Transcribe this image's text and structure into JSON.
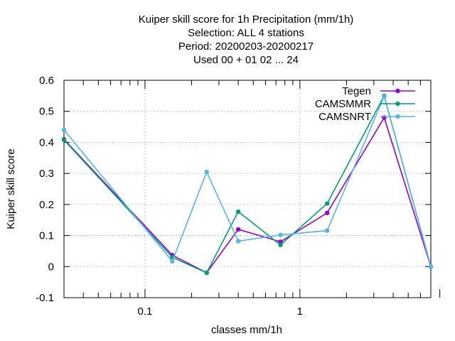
{
  "chart_data": {
    "type": "line",
    "title": [
      "Kuiper skill score  for 1h Precipitation (mm/1h)",
      "Selection: ALL      4 stations",
      "Period: 20200203-20200217",
      "Used  00 + 01 02 ... 24"
    ],
    "xlabel": "classes mm/1h",
    "ylabel": "Kuiper skill score",
    "xscale": "log",
    "xlim": [
      0.03,
      7.0
    ],
    "ylim": [
      -0.1,
      0.6
    ],
    "xticks": [
      {
        "value": 0.1,
        "label": "0.1"
      },
      {
        "value": 1,
        "label": "1"
      }
    ],
    "yticks": [
      {
        "value": -0.1,
        "label": "-0.1"
      },
      {
        "value": 0,
        "label": "0"
      },
      {
        "value": 0.1,
        "label": "0.1"
      },
      {
        "value": 0.2,
        "label": "0.2"
      },
      {
        "value": 0.3,
        "label": "0.3"
      },
      {
        "value": 0.4,
        "label": "0.4"
      },
      {
        "value": 0.5,
        "label": "0.5"
      },
      {
        "value": 0.6,
        "label": "0.6"
      }
    ],
    "grid": true,
    "legend_position": "top-right",
    "x": [
      0.03,
      0.15,
      0.25,
      0.4,
      0.75,
      1.5,
      3.5,
      7.0
    ],
    "series": [
      {
        "name": "Tegen",
        "color": "#9400d3",
        "values": [
          0.41,
          0.037,
          -0.02,
          0.12,
          0.08,
          0.173,
          0.48,
          0.0
        ]
      },
      {
        "name": "CAMSMMR",
        "color": "#009e73",
        "values": [
          0.408,
          0.03,
          -0.02,
          0.177,
          0.07,
          0.203,
          0.55,
          0.0
        ]
      },
      {
        "name": "CAMSNRT",
        "color": "#56b4e9",
        "values": [
          0.44,
          0.017,
          0.305,
          0.082,
          0.102,
          0.116,
          0.548,
          0.0
        ]
      }
    ]
  }
}
